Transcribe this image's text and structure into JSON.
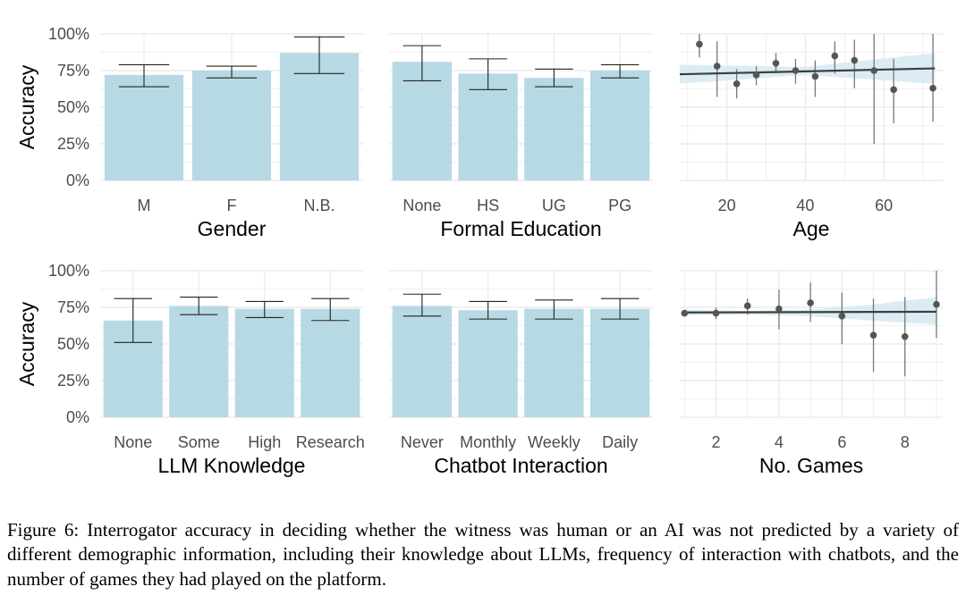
{
  "figure": {
    "caption": "Figure 6: Interrogator accuracy in deciding whether the witness was human or an AI was not predicted by a variety of different demographic information, including their knowledge about LLMs, frequency of interaction with chatbots, and the number of games they had played on the platform."
  },
  "colors": {
    "bar_fill": "#b7d9e4",
    "ci_band": "#d6e9f2",
    "point": "#555555",
    "line": "#3d3d3d",
    "grid": "#ebebeb",
    "error_bar": "#222222"
  },
  "chart_data": [
    {
      "type": "bar",
      "xlabel": "Gender",
      "ylabel": "Accuracy",
      "ylim": [
        0,
        1
      ],
      "yticks": [
        0,
        0.25,
        0.5,
        0.75,
        1.0
      ],
      "ytick_labels": [
        "0%",
        "25%",
        "50%",
        "75%",
        "100%"
      ],
      "grid": true,
      "categories": [
        "M",
        "F",
        "N.B."
      ],
      "values": [
        0.72,
        0.75,
        0.87
      ],
      "ci_low": [
        0.64,
        0.7,
        0.73
      ],
      "ci_high": [
        0.79,
        0.78,
        0.98
      ]
    },
    {
      "type": "bar",
      "xlabel": "Formal Education",
      "ylim": [
        0,
        1
      ],
      "grid": true,
      "categories": [
        "None",
        "HS",
        "UG",
        "PG"
      ],
      "values": [
        0.81,
        0.73,
        0.7,
        0.75
      ],
      "ci_low": [
        0.68,
        0.62,
        0.64,
        0.7
      ],
      "ci_high": [
        0.92,
        0.83,
        0.76,
        0.79
      ]
    },
    {
      "type": "scatter",
      "xlabel": "Age",
      "xlim": [
        8,
        75
      ],
      "xticks": [
        20,
        40,
        60
      ],
      "ylim": [
        0,
        1
      ],
      "grid": true,
      "points": [
        {
          "x": 13,
          "y": 0.93,
          "lo": 0.84,
          "hi": 1.0
        },
        {
          "x": 17.5,
          "y": 0.78,
          "lo": 0.57,
          "hi": 0.95
        },
        {
          "x": 22.5,
          "y": 0.66,
          "lo": 0.56,
          "hi": 0.76
        },
        {
          "x": 27.5,
          "y": 0.72,
          "lo": 0.65,
          "hi": 0.78
        },
        {
          "x": 32.5,
          "y": 0.8,
          "lo": 0.73,
          "hi": 0.87
        },
        {
          "x": 37.5,
          "y": 0.75,
          "lo": 0.66,
          "hi": 0.83
        },
        {
          "x": 42.5,
          "y": 0.71,
          "lo": 0.57,
          "hi": 0.82
        },
        {
          "x": 47.5,
          "y": 0.85,
          "lo": 0.73,
          "hi": 0.95
        },
        {
          "x": 52.5,
          "y": 0.82,
          "lo": 0.63,
          "hi": 0.96
        },
        {
          "x": 57.5,
          "y": 0.75,
          "lo": 0.25,
          "hi": 1.0
        },
        {
          "x": 62.5,
          "y": 0.62,
          "lo": 0.39,
          "hi": 0.83
        },
        {
          "x": 72.5,
          "y": 0.63,
          "lo": 0.4,
          "hi": 1.0
        }
      ],
      "trend": {
        "x": [
          8,
          73
        ],
        "y": [
          0.725,
          0.765
        ]
      },
      "band": {
        "x": [
          8,
          40,
          73
        ],
        "lo": [
          0.66,
          0.72,
          0.66
        ],
        "hi": [
          0.79,
          0.775,
          0.87
        ]
      }
    },
    {
      "type": "bar",
      "xlabel": "LLM Knowledge",
      "ylabel": "Accuracy",
      "ylim": [
        0,
        1
      ],
      "yticks": [
        0,
        0.25,
        0.5,
        0.75,
        1.0
      ],
      "ytick_labels": [
        "0%",
        "25%",
        "50%",
        "75%",
        "100%"
      ],
      "grid": true,
      "categories": [
        "None",
        "Some",
        "High",
        "Research"
      ],
      "values": [
        0.66,
        0.76,
        0.74,
        0.74
      ],
      "ci_low": [
        0.51,
        0.7,
        0.68,
        0.66
      ],
      "ci_high": [
        0.81,
        0.82,
        0.79,
        0.81
      ]
    },
    {
      "type": "bar",
      "xlabel": "Chatbot Interaction",
      "ylim": [
        0,
        1
      ],
      "grid": true,
      "categories": [
        "Never",
        "Monthly",
        "Weekly",
        "Daily"
      ],
      "values": [
        0.76,
        0.73,
        0.74,
        0.74
      ],
      "ci_low": [
        0.69,
        0.67,
        0.67,
        0.67
      ],
      "ci_high": [
        0.84,
        0.79,
        0.8,
        0.81
      ]
    },
    {
      "type": "scatter",
      "xlabel": "No. Games",
      "xlim": [
        0.85,
        9.2
      ],
      "xticks": [
        2,
        4,
        6,
        8
      ],
      "ylim": [
        0,
        1
      ],
      "grid": true,
      "points": [
        {
          "x": 1,
          "y": 0.71,
          "lo": 0.69,
          "hi": 0.73
        },
        {
          "x": 2,
          "y": 0.71,
          "lo": 0.67,
          "hi": 0.75
        },
        {
          "x": 3,
          "y": 0.76,
          "lo": 0.7,
          "hi": 0.81
        },
        {
          "x": 4,
          "y": 0.74,
          "lo": 0.6,
          "hi": 0.87
        },
        {
          "x": 5,
          "y": 0.78,
          "lo": 0.65,
          "hi": 0.92
        },
        {
          "x": 6,
          "y": 0.69,
          "lo": 0.5,
          "hi": 0.85
        },
        {
          "x": 7,
          "y": 0.56,
          "lo": 0.31,
          "hi": 0.81
        },
        {
          "x": 8,
          "y": 0.55,
          "lo": 0.28,
          "hi": 0.82
        },
        {
          "x": 9,
          "y": 0.77,
          "lo": 0.54,
          "hi": 1.0
        }
      ],
      "trend": {
        "x": [
          1,
          9
        ],
        "y": [
          0.715,
          0.72
        ]
      },
      "band": {
        "x": [
          1,
          3,
          5,
          7,
          9
        ],
        "lo": [
          0.695,
          0.7,
          0.69,
          0.66,
          0.63
        ],
        "hi": [
          0.735,
          0.725,
          0.735,
          0.77,
          0.82
        ]
      }
    }
  ]
}
